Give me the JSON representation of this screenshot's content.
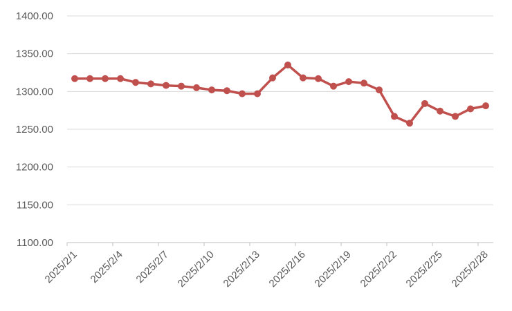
{
  "chart_data": {
    "type": "line",
    "title": "",
    "xlabel": "",
    "ylabel": "",
    "x": [
      "2025/2/1",
      "2025/2/2",
      "2025/2/3",
      "2025/2/4",
      "2025/2/5",
      "2025/2/6",
      "2025/2/7",
      "2025/2/8",
      "2025/2/9",
      "2025/2/10",
      "2025/2/11",
      "2025/2/12",
      "2025/2/13",
      "2025/2/14",
      "2025/2/15",
      "2025/2/16",
      "2025/2/17",
      "2025/2/18",
      "2025/2/19",
      "2025/2/20",
      "2025/2/21",
      "2025/2/22",
      "2025/2/23",
      "2025/2/24",
      "2025/2/25",
      "2025/2/26",
      "2025/2/27",
      "2025/2/28"
    ],
    "x_tick_labels": [
      "2025/2/1",
      "2025/2/4",
      "2025/2/7",
      "2025/2/10",
      "2025/2/13",
      "2025/2/16",
      "2025/2/19",
      "2025/2/22",
      "2025/2/25",
      "2025/2/28"
    ],
    "series": [
      {
        "values": [
          1317,
          1317,
          1317,
          1317,
          1312,
          1310,
          1308,
          1307,
          1305,
          1302,
          1301,
          1297,
          1297,
          1318,
          1335,
          1318,
          1317,
          1307,
          1313,
          1311,
          1302,
          1267,
          1258,
          1284,
          1274,
          1267,
          1277,
          1281
        ],
        "color": "#c0504d"
      }
    ],
    "y_ticks": [
      "1100.00",
      "1150.00",
      "1200.00",
      "1250.00",
      "1300.00",
      "1350.00",
      "1400.00"
    ],
    "ylim": [
      1100,
      1400
    ],
    "grid": true,
    "legend": "none"
  }
}
